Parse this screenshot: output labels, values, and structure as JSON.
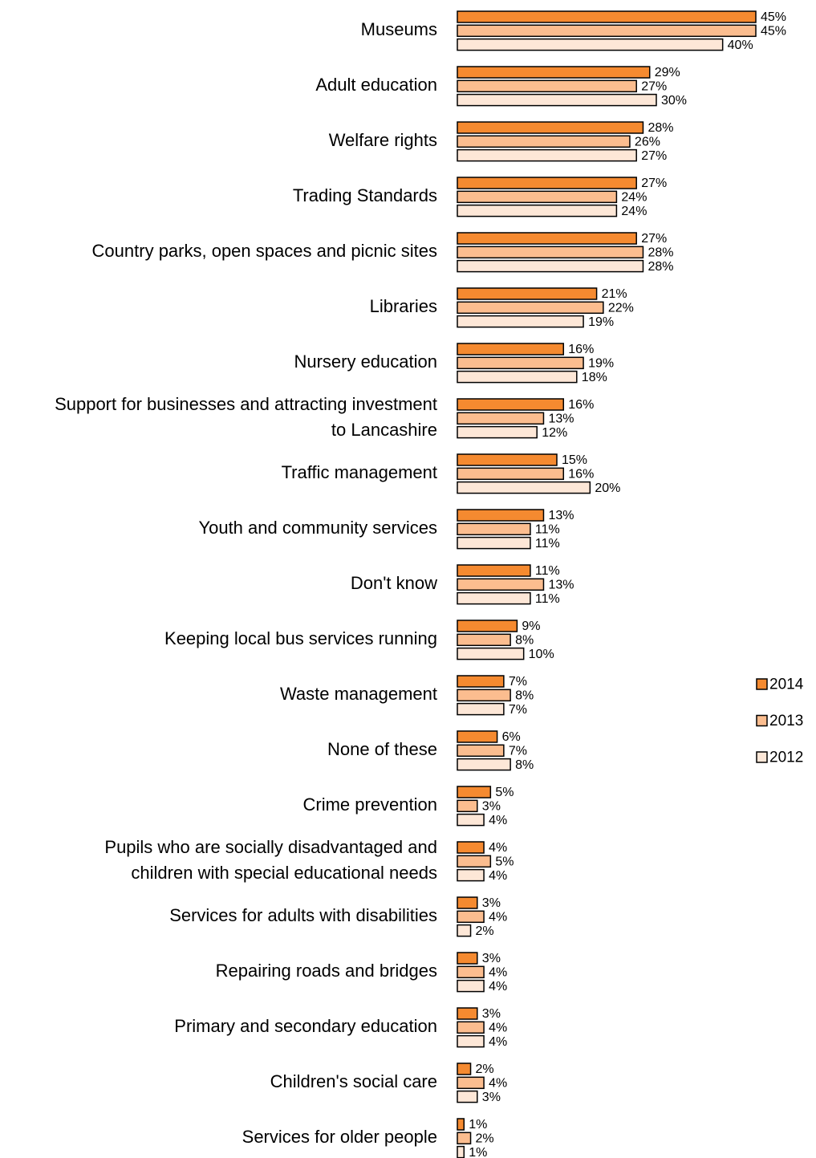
{
  "chart_data": {
    "type": "bar",
    "orientation": "horizontal",
    "title": "",
    "xlabel": "",
    "ylabel": "",
    "grid": false,
    "legend_position": "right",
    "value_suffix": "%",
    "xlim": [
      0,
      45
    ],
    "categories": [
      "Museums",
      "Adult education",
      "Welfare rights",
      "Trading Standards",
      "Country parks, open spaces and picnic sites",
      "Libraries",
      "Nursery education",
      "Support for businesses and attracting investment to Lancashire",
      "Traffic management",
      "Youth and community services",
      "Don't know",
      "Keeping local bus services running",
      "Waste management",
      "None of these",
      "Crime prevention",
      "Pupils who are socially disadvantaged and children with special educational needs",
      "Services for adults with disabilities",
      "Repairing roads and bridges",
      "Primary and secondary education",
      "Children's social care",
      "Services for older people"
    ],
    "category_lines": [
      [
        "Museums"
      ],
      [
        "Adult education"
      ],
      [
        "Welfare rights"
      ],
      [
        "Trading Standards"
      ],
      [
        "Country parks, open spaces and picnic sites"
      ],
      [
        "Libraries"
      ],
      [
        "Nursery education"
      ],
      [
        "Support for businesses and attracting investment",
        "to Lancashire"
      ],
      [
        "Traffic management"
      ],
      [
        "Youth and community services"
      ],
      [
        "Don't know"
      ],
      [
        "Keeping local bus services running"
      ],
      [
        "Waste management"
      ],
      [
        "None of these"
      ],
      [
        "Crime prevention"
      ],
      [
        "Pupils who are socially disadvantaged and",
        "children with special educational needs"
      ],
      [
        "Services for adults with disabilities"
      ],
      [
        "Repairing roads and bridges"
      ],
      [
        "Primary and secondary education"
      ],
      [
        "Children's social care"
      ],
      [
        "Services for older people"
      ]
    ],
    "series": [
      {
        "name": "2014",
        "color": "#f58a30",
        "values": [
          45,
          29,
          28,
          27,
          27,
          21,
          16,
          16,
          15,
          13,
          11,
          9,
          7,
          6,
          5,
          4,
          3,
          3,
          3,
          2,
          1
        ]
      },
      {
        "name": "2013",
        "color": "#fbbd8f",
        "values": [
          45,
          27,
          26,
          24,
          28,
          22,
          19,
          13,
          16,
          11,
          13,
          8,
          8,
          7,
          3,
          5,
          4,
          4,
          4,
          4,
          2
        ]
      },
      {
        "name": "2012",
        "color": "#fde7d7",
        "values": [
          40,
          30,
          27,
          24,
          28,
          19,
          18,
          12,
          20,
          11,
          11,
          10,
          7,
          8,
          4,
          4,
          2,
          4,
          4,
          3,
          1
        ]
      }
    ]
  }
}
